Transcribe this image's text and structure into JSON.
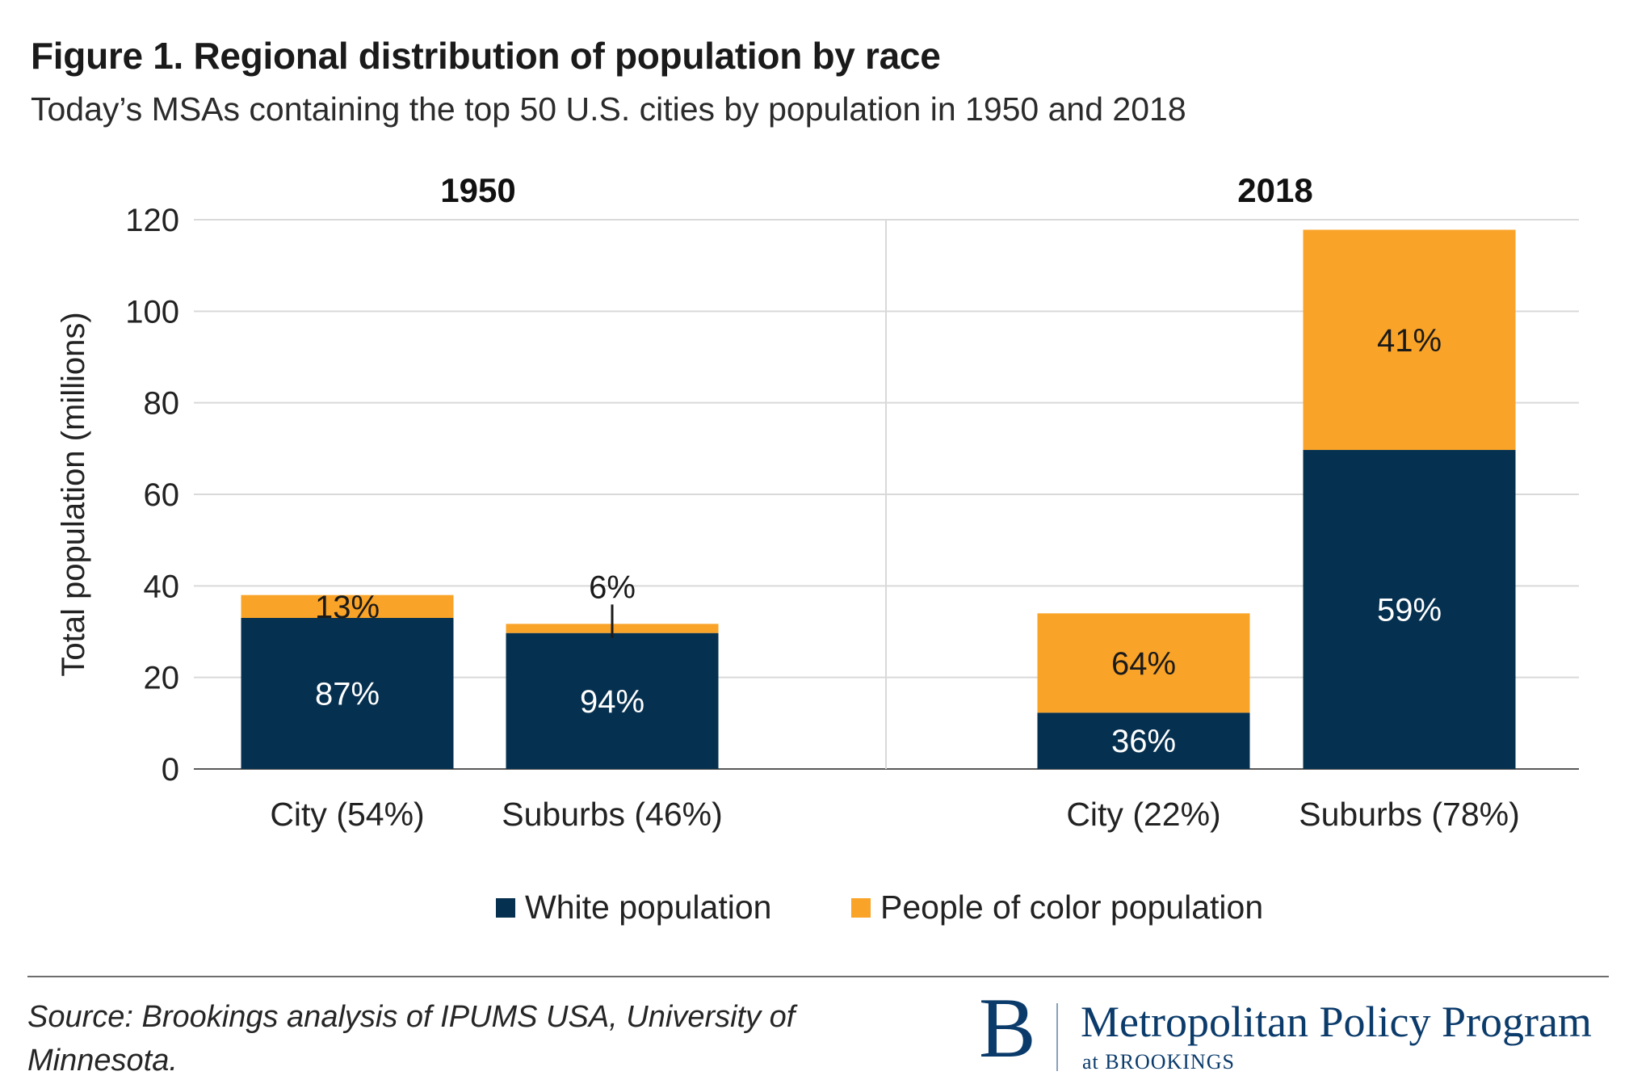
{
  "header": {
    "title": "Figure 1. Regional distribution of population by race",
    "subtitle": "Today’s MSAs containing the top 50 U.S. cities by population in 1950 and 2018"
  },
  "chart_data": {
    "type": "bar",
    "stacked": true,
    "ylabel": "Total population (millions)",
    "ylim": [
      0,
      120
    ],
    "yticks": [
      0,
      20,
      40,
      60,
      80,
      100,
      120
    ],
    "grid": true,
    "legend_position": "bottom",
    "panels": [
      {
        "label": "1950",
        "categories": [
          "City (54%)",
          "Suburbs (46%)"
        ],
        "series": [
          {
            "name": "White population",
            "values": [
              33,
              29.7
            ],
            "labels": [
              "87%",
              "94%"
            ]
          },
          {
            "name": "People of color population",
            "values": [
              5,
              2
            ],
            "labels": [
              "13%",
              "6%"
            ]
          }
        ]
      },
      {
        "label": "2018",
        "categories": [
          "City (22%)",
          "Suburbs (78%)"
        ],
        "series": [
          {
            "name": "White population",
            "values": [
              12.3,
              69.7
            ],
            "labels": [
              "36%",
              "59%"
            ]
          },
          {
            "name": "People of color population",
            "values": [
              21.7,
              48.1
            ],
            "labels": [
              "64%",
              "41%"
            ]
          }
        ]
      }
    ],
    "colors": {
      "white_population": "#06304f",
      "people_of_color_population": "#f9a328"
    }
  },
  "footer": {
    "source": "Source: Brookings analysis of IPUMS USA, University of Minnesota.",
    "logo_mark": "B",
    "logo_name": "Metropolitan Policy Program",
    "logo_sub": "at BROOKINGS"
  }
}
